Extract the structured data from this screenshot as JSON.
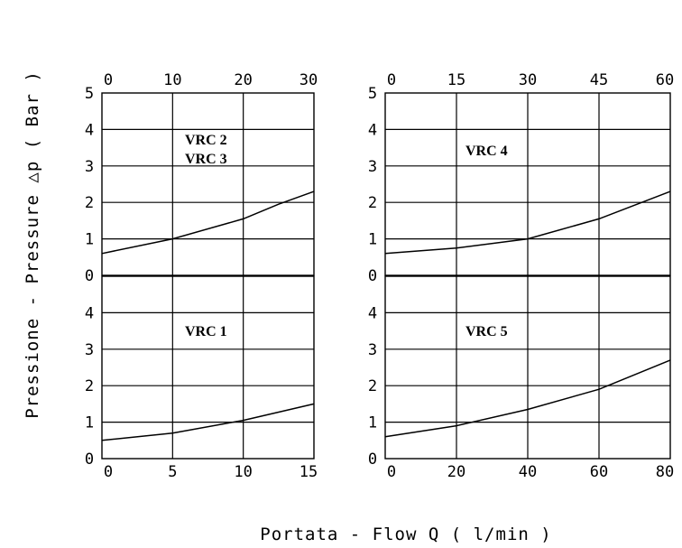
{
  "chart_data": [
    {
      "type": "line",
      "panel": "top-left",
      "labels": [
        "VRC 2",
        "VRC 3"
      ],
      "x_ticks": [
        "0",
        "10",
        "20",
        "30"
      ],
      "y_ticks": [
        "0",
        "1",
        "2",
        "3",
        "4",
        "5"
      ],
      "xlim": [
        0,
        30
      ],
      "ylim": [
        0,
        5
      ],
      "grid": true,
      "series": [
        {
          "x": [
            0,
            10,
            20,
            25,
            30
          ],
          "y": [
            0.6,
            1.0,
            1.55,
            1.95,
            2.3
          ]
        }
      ]
    },
    {
      "type": "line",
      "panel": "top-right",
      "labels": [
        "VRC 4"
      ],
      "x_ticks": [
        "0",
        "15",
        "30",
        "45",
        "60"
      ],
      "y_ticks": [
        "0",
        "1",
        "2",
        "3",
        "4",
        "5"
      ],
      "xlim": [
        0,
        60
      ],
      "ylim": [
        0,
        5
      ],
      "grid": true,
      "series": [
        {
          "x": [
            0,
            15,
            30,
            45,
            60
          ],
          "y": [
            0.6,
            0.75,
            1.0,
            1.55,
            2.3
          ]
        }
      ]
    },
    {
      "type": "line",
      "panel": "bottom-left",
      "labels": [
        "VRC 1"
      ],
      "x_ticks": [
        "0",
        "5",
        "10",
        "15"
      ],
      "y_ticks": [
        "0",
        "1",
        "2",
        "3",
        "4"
      ],
      "xlim": [
        0,
        15
      ],
      "ylim": [
        0,
        5
      ],
      "grid": true,
      "series": [
        {
          "x": [
            0,
            5,
            10,
            15
          ],
          "y": [
            0.5,
            0.7,
            1.05,
            1.5
          ]
        }
      ]
    },
    {
      "type": "line",
      "panel": "bottom-right",
      "labels": [
        "VRC 5"
      ],
      "x_ticks": [
        "0",
        "20",
        "40",
        "60",
        "80"
      ],
      "y_ticks": [
        "0",
        "1",
        "2",
        "3",
        "4"
      ],
      "xlim": [
        0,
        80
      ],
      "ylim": [
        0,
        5
      ],
      "grid": true,
      "series": [
        {
          "x": [
            0,
            20,
            40,
            60,
            80
          ],
          "y": [
            0.6,
            0.9,
            1.35,
            1.9,
            2.7
          ]
        }
      ]
    }
  ],
  "axes": {
    "ylabel": "Pressione - Pressure △p ( Bar )",
    "xlabel": "Portata - Flow  Q ( l/min )"
  }
}
